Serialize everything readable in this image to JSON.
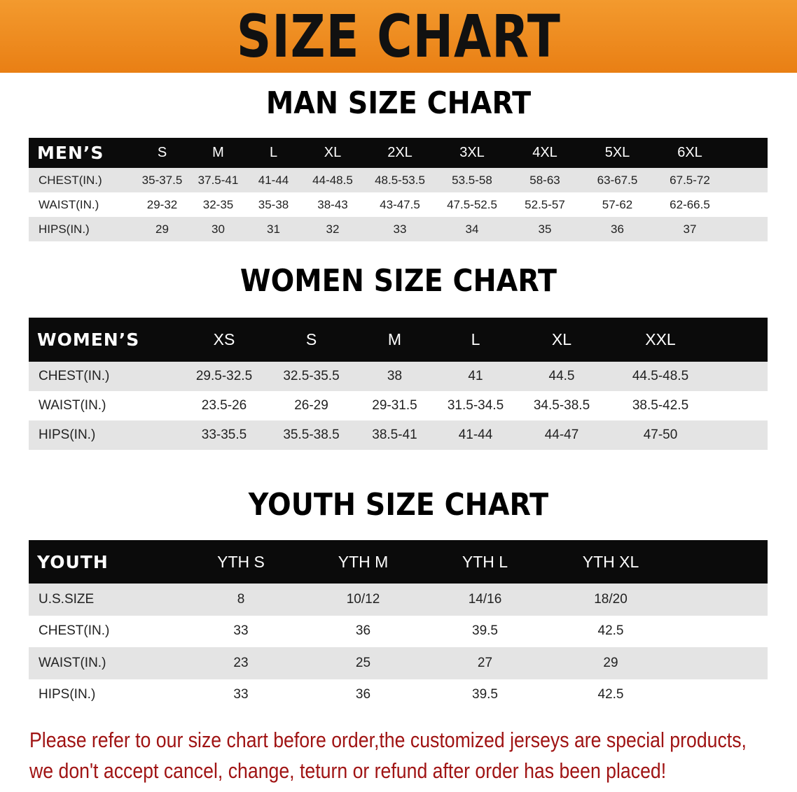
{
  "title": "SIZE CHART",
  "colors": {
    "banner": "#ee8a1e",
    "header_row": "#0b0b0b",
    "note": "#a01414"
  },
  "men": {
    "title": "MAN SIZE CHART",
    "header": [
      "MEN’S",
      "S",
      "M",
      "L",
      "XL",
      "2XL",
      "3XL",
      "4XL",
      "5XL",
      "6XL"
    ],
    "rows": [
      [
        "CHEST(IN.)",
        "35-37.5",
        "37.5-41",
        "41-44",
        "44-48.5",
        "48.5-53.5",
        "53.5-58",
        "58-63",
        "63-67.5",
        "67.5-72"
      ],
      [
        "WAIST(IN.)",
        "29-32",
        "32-35",
        "35-38",
        "38-43",
        "43-47.5",
        "47.5-52.5",
        "52.5-57",
        "57-62",
        "62-66.5"
      ],
      [
        "HIPS(IN.)",
        "29",
        "30",
        "31",
        "32",
        "33",
        "34",
        "35",
        "36",
        "37"
      ]
    ]
  },
  "women": {
    "title": "WOMEN SIZE CHART",
    "header": [
      "WOMEN’S",
      "XS",
      "S",
      "M",
      "L",
      "XL",
      "XXL"
    ],
    "rows": [
      [
        "CHEST(IN.)",
        "29.5-32.5",
        "32.5-35.5",
        "38",
        "41",
        "44.5",
        "44.5-48.5"
      ],
      [
        "WAIST(IN.)",
        "23.5-26",
        "26-29",
        "29-31.5",
        "31.5-34.5",
        "34.5-38.5",
        "38.5-42.5"
      ],
      [
        "HIPS(IN.)",
        "33-35.5",
        "35.5-38.5",
        "38.5-41",
        "41-44",
        "44-47",
        "47-50"
      ]
    ]
  },
  "youth": {
    "title": "YOUTH SIZE CHART",
    "header": [
      "YOUTH",
      "YTH S",
      "YTH M",
      "YTH L",
      "YTH XL"
    ],
    "rows": [
      [
        "U.S.SIZE",
        "8",
        "10/12",
        "14/16",
        "18/20"
      ],
      [
        "CHEST(IN.)",
        "33",
        "36",
        "39.5",
        "42.5"
      ],
      [
        "WAIST(IN.)",
        "23",
        "25",
        "27",
        "29"
      ],
      [
        "HIPS(IN.)",
        "33",
        "36",
        "39.5",
        "42.5"
      ]
    ]
  },
  "note": {
    "line1": "Please refer to our size chart before order,the customized jerseys are special products,",
    "line2": "we don't accept cancel, change, teturn or refund after order has been placed!"
  }
}
